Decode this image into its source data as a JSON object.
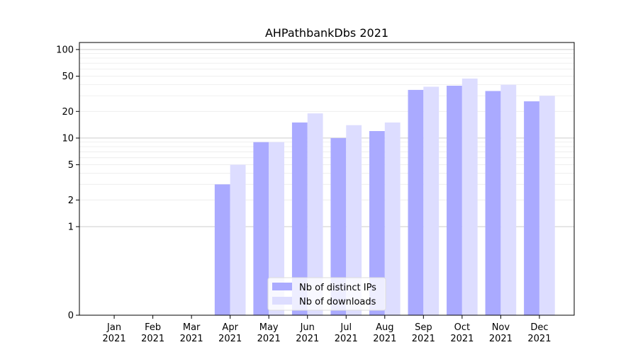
{
  "chart_data": {
    "type": "bar",
    "title": "AHPathbankDbs 2021",
    "categories": [
      "Jan\n2021",
      "Feb\n2021",
      "Mar\n2021",
      "Apr\n2021",
      "May\n2021",
      "Jun\n2021",
      "Jul\n2021",
      "Aug\n2021",
      "Sep\n2021",
      "Oct\n2021",
      "Nov\n2021",
      "Dec\n2021"
    ],
    "series": [
      {
        "name": "Nb of distinct IPs",
        "color": "#aaaaff",
        "values": [
          0,
          0,
          0,
          3,
          9,
          15,
          10,
          12,
          35,
          39,
          34,
          26
        ]
      },
      {
        "name": "Nb of downloads",
        "color": "#ddddff",
        "values": [
          0,
          0,
          0,
          5,
          9,
          19,
          14,
          15,
          38,
          47,
          40,
          30
        ]
      }
    ],
    "y_scale": "symlog",
    "y_ticks": [
      0,
      1,
      2,
      5,
      10,
      20,
      50,
      100
    ],
    "ylim": [
      0,
      120
    ],
    "grid": true,
    "legend_position": "lower-center"
  }
}
